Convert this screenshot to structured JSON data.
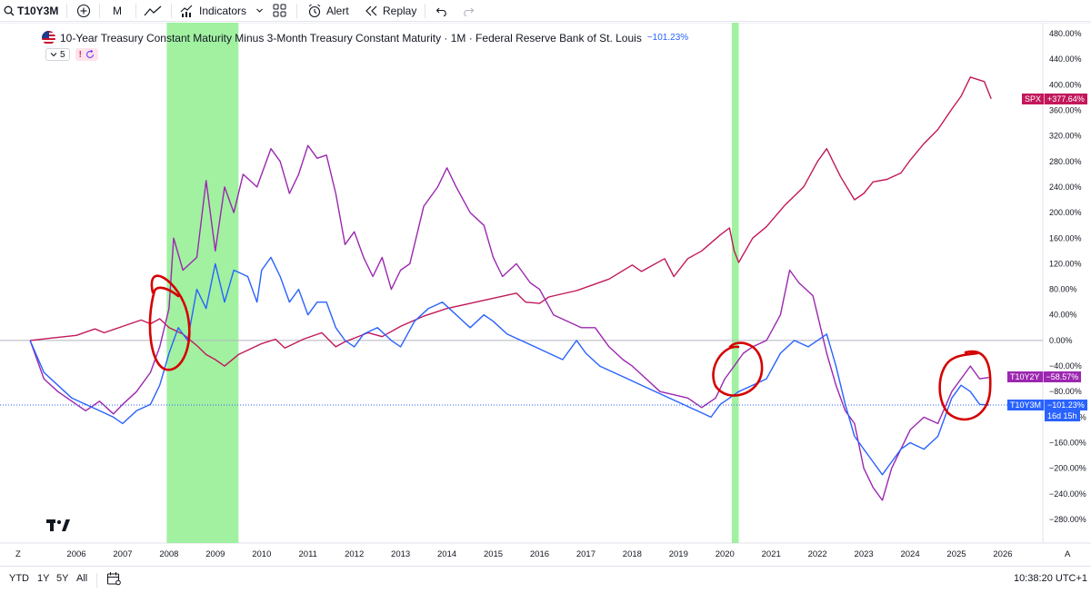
{
  "toolbar": {
    "symbol": "T10Y3M",
    "interval": "M",
    "indicators_label": "Indicators",
    "alert_label": "Alert",
    "replay_label": "Replay"
  },
  "legend": {
    "title": "10-Year Treasury Constant Maturity Minus 3-Month Treasury Constant Maturity · 1M · Federal Reserve Bank of St. Louis",
    "change": "−101.23%",
    "collapse_count": "5",
    "alert_glyph": "!"
  },
  "price_labels": {
    "spx": {
      "name": "SPX",
      "value": "+377.64%"
    },
    "t10y2y": {
      "name": "T10Y2Y",
      "value": "−58.57%"
    },
    "t10y3m": {
      "name": "T10Y3M",
      "value": "−101.23%",
      "countdown": "16d 15h"
    }
  },
  "colors": {
    "spx": "#c2185b",
    "t10y2y": "#9c27b0",
    "t10y3m": "#2962ff",
    "recession": "#90ee90",
    "annotation": "#d50000"
  },
  "bottom": {
    "ranges": [
      "YTD",
      "1Y",
      "5Y",
      "All"
    ],
    "time": "10:38:20 UTC+1",
    "corner_left": "Z",
    "corner_right": "A"
  },
  "chart_data": {
    "type": "line",
    "y_unit": "percent change",
    "ylim": [
      -300,
      490
    ],
    "xlim": [
      2005.1,
      2026.8
    ],
    "y_ticks": [
      "480.00%",
      "440.00%",
      "400.00%",
      "360.00%",
      "320.00%",
      "280.00%",
      "240.00%",
      "200.00%",
      "160.00%",
      "120.00%",
      "80.00%",
      "40.00%",
      "0.00%",
      "−40.00%",
      "−80.00%",
      "−120.00%",
      "−160.00%",
      "−200.00%",
      "−240.00%",
      "−280.00%"
    ],
    "y_tick_values": [
      480,
      440,
      400,
      360,
      320,
      280,
      240,
      200,
      160,
      120,
      80,
      40,
      0,
      -40,
      -80,
      -120,
      -160,
      -200,
      -240,
      -280
    ],
    "x_ticks": [
      "2006",
      "2007",
      "2008",
      "2009",
      "2010",
      "2011",
      "2012",
      "2013",
      "2014",
      "2015",
      "2016",
      "2017",
      "2018",
      "2019",
      "2020",
      "2021",
      "2022",
      "2023",
      "2024",
      "2025",
      "2026"
    ],
    "x_tick_values": [
      2006,
      2007,
      2008,
      2009,
      2010,
      2011,
      2012,
      2013,
      2014,
      2015,
      2016,
      2017,
      2018,
      2019,
      2020,
      2021,
      2022,
      2023,
      2024,
      2025,
      2026
    ],
    "recessions": [
      [
        2007.95,
        2009.5
      ],
      [
        2020.15,
        2020.3
      ]
    ],
    "series": [
      {
        "name": "SPX",
        "key": "spx",
        "points": [
          [
            2005.0,
            0
          ],
          [
            2005.5,
            4
          ],
          [
            2006.0,
            8
          ],
          [
            2006.4,
            18
          ],
          [
            2006.6,
            12
          ],
          [
            2007.0,
            22
          ],
          [
            2007.4,
            32
          ],
          [
            2007.6,
            26
          ],
          [
            2007.8,
            34
          ],
          [
            2008.0,
            20
          ],
          [
            2008.3,
            10
          ],
          [
            2008.6,
            -8
          ],
          [
            2008.8,
            -22
          ],
          [
            2009.0,
            -30
          ],
          [
            2009.2,
            -40
          ],
          [
            2009.5,
            -22
          ],
          [
            2010.0,
            -5
          ],
          [
            2010.3,
            2
          ],
          [
            2010.5,
            -12
          ],
          [
            2010.9,
            2
          ],
          [
            2011.3,
            12
          ],
          [
            2011.6,
            -10
          ],
          [
            2011.8,
            -2
          ],
          [
            2012.3,
            12
          ],
          [
            2012.6,
            6
          ],
          [
            2013.0,
            22
          ],
          [
            2013.5,
            38
          ],
          [
            2014.0,
            50
          ],
          [
            2014.5,
            58
          ],
          [
            2015.0,
            66
          ],
          [
            2015.5,
            74
          ],
          [
            2015.7,
            60
          ],
          [
            2016.0,
            58
          ],
          [
            2016.2,
            68
          ],
          [
            2016.8,
            78
          ],
          [
            2017.5,
            96
          ],
          [
            2018.0,
            118
          ],
          [
            2018.2,
            108
          ],
          [
            2018.7,
            128
          ],
          [
            2018.9,
            100
          ],
          [
            2019.2,
            128
          ],
          [
            2019.5,
            140
          ],
          [
            2019.9,
            165
          ],
          [
            2020.1,
            176
          ],
          [
            2020.2,
            140
          ],
          [
            2020.3,
            122
          ],
          [
            2020.6,
            160
          ],
          [
            2020.9,
            178
          ],
          [
            2021.3,
            212
          ],
          [
            2021.7,
            240
          ],
          [
            2022.0,
            280
          ],
          [
            2022.2,
            300
          ],
          [
            2022.5,
            256
          ],
          [
            2022.8,
            220
          ],
          [
            2023.0,
            230
          ],
          [
            2023.2,
            248
          ],
          [
            2023.5,
            252
          ],
          [
            2023.8,
            262
          ],
          [
            2024.0,
            282
          ],
          [
            2024.3,
            308
          ],
          [
            2024.6,
            330
          ],
          [
            2024.9,
            362
          ],
          [
            2025.1,
            382
          ],
          [
            2025.3,
            412
          ],
          [
            2025.6,
            405
          ],
          [
            2025.75,
            378
          ]
        ]
      },
      {
        "name": "T10Y2Y",
        "key": "t10y2y",
        "points": [
          [
            2005.0,
            0
          ],
          [
            2005.3,
            -60
          ],
          [
            2005.6,
            -80
          ],
          [
            2005.9,
            -95
          ],
          [
            2006.2,
            -110
          ],
          [
            2006.5,
            -95
          ],
          [
            2006.8,
            -115
          ],
          [
            2007.0,
            -100
          ],
          [
            2007.3,
            -80
          ],
          [
            2007.6,
            -50
          ],
          [
            2007.8,
            -10
          ],
          [
            2008.0,
            50
          ],
          [
            2008.1,
            160
          ],
          [
            2008.3,
            110
          ],
          [
            2008.6,
            130
          ],
          [
            2008.8,
            250
          ],
          [
            2009.0,
            140
          ],
          [
            2009.2,
            240
          ],
          [
            2009.4,
            200
          ],
          [
            2009.6,
            260
          ],
          [
            2009.9,
            240
          ],
          [
            2010.2,
            300
          ],
          [
            2010.4,
            280
          ],
          [
            2010.6,
            230
          ],
          [
            2010.8,
            260
          ],
          [
            2011.0,
            305
          ],
          [
            2011.2,
            285
          ],
          [
            2011.4,
            290
          ],
          [
            2011.6,
            230
          ],
          [
            2011.8,
            150
          ],
          [
            2012.0,
            170
          ],
          [
            2012.2,
            130
          ],
          [
            2012.4,
            100
          ],
          [
            2012.6,
            130
          ],
          [
            2012.8,
            80
          ],
          [
            2013.0,
            110
          ],
          [
            2013.2,
            120
          ],
          [
            2013.5,
            210
          ],
          [
            2013.8,
            240
          ],
          [
            2014.0,
            270
          ],
          [
            2014.2,
            240
          ],
          [
            2014.5,
            200
          ],
          [
            2014.8,
            180
          ],
          [
            2015.0,
            130
          ],
          [
            2015.2,
            100
          ],
          [
            2015.5,
            120
          ],
          [
            2015.8,
            90
          ],
          [
            2016.0,
            80
          ],
          [
            2016.3,
            40
          ],
          [
            2016.6,
            30
          ],
          [
            2016.9,
            20
          ],
          [
            2017.2,
            20
          ],
          [
            2017.5,
            -10
          ],
          [
            2017.8,
            -30
          ],
          [
            2018.0,
            -40
          ],
          [
            2018.3,
            -60
          ],
          [
            2018.6,
            -80
          ],
          [
            2018.9,
            -85
          ],
          [
            2019.2,
            -90
          ],
          [
            2019.5,
            -105
          ],
          [
            2019.8,
            -90
          ],
          [
            2020.0,
            -60
          ],
          [
            2020.2,
            -40
          ],
          [
            2020.4,
            -20
          ],
          [
            2020.6,
            -10
          ],
          [
            2020.9,
            0
          ],
          [
            2021.2,
            40
          ],
          [
            2021.4,
            110
          ],
          [
            2021.6,
            90
          ],
          [
            2021.9,
            70
          ],
          [
            2022.0,
            40
          ],
          [
            2022.2,
            -20
          ],
          [
            2022.4,
            -70
          ],
          [
            2022.6,
            -110
          ],
          [
            2022.8,
            -130
          ],
          [
            2023.0,
            -200
          ],
          [
            2023.2,
            -230
          ],
          [
            2023.4,
            -250
          ],
          [
            2023.6,
            -200
          ],
          [
            2023.8,
            -170
          ],
          [
            2024.0,
            -140
          ],
          [
            2024.3,
            -120
          ],
          [
            2024.6,
            -130
          ],
          [
            2024.9,
            -80
          ],
          [
            2025.1,
            -60
          ],
          [
            2025.3,
            -40
          ],
          [
            2025.5,
            -60
          ],
          [
            2025.7,
            -58
          ]
        ]
      },
      {
        "name": "T10Y3M",
        "key": "t10y3m",
        "points": [
          [
            2005.0,
            0
          ],
          [
            2005.3,
            -50
          ],
          [
            2005.6,
            -70
          ],
          [
            2005.9,
            -90
          ],
          [
            2006.2,
            -100
          ],
          [
            2006.5,
            -110
          ],
          [
            2006.8,
            -120
          ],
          [
            2007.0,
            -130
          ],
          [
            2007.3,
            -110
          ],
          [
            2007.6,
            -100
          ],
          [
            2007.8,
            -70
          ],
          [
            2008.0,
            -20
          ],
          [
            2008.2,
            20
          ],
          [
            2008.4,
            0
          ],
          [
            2008.6,
            80
          ],
          [
            2008.8,
            50
          ],
          [
            2009.0,
            120
          ],
          [
            2009.2,
            60
          ],
          [
            2009.4,
            110
          ],
          [
            2009.7,
            100
          ],
          [
            2009.9,
            60
          ],
          [
            2010.0,
            110
          ],
          [
            2010.2,
            130
          ],
          [
            2010.4,
            100
          ],
          [
            2010.6,
            60
          ],
          [
            2010.8,
            80
          ],
          [
            2011.0,
            40
          ],
          [
            2011.2,
            60
          ],
          [
            2011.4,
            60
          ],
          [
            2011.6,
            20
          ],
          [
            2011.8,
            0
          ],
          [
            2012.0,
            -10
          ],
          [
            2012.2,
            10
          ],
          [
            2012.5,
            20
          ],
          [
            2012.8,
            0
          ],
          [
            2013.0,
            -10
          ],
          [
            2013.3,
            30
          ],
          [
            2013.6,
            50
          ],
          [
            2013.9,
            60
          ],
          [
            2014.2,
            40
          ],
          [
            2014.5,
            20
          ],
          [
            2014.8,
            40
          ],
          [
            2015.0,
            30
          ],
          [
            2015.3,
            10
          ],
          [
            2015.6,
            0
          ],
          [
            2015.9,
            -10
          ],
          [
            2016.2,
            -20
          ],
          [
            2016.5,
            -30
          ],
          [
            2016.8,
            0
          ],
          [
            2017.0,
            -20
          ],
          [
            2017.3,
            -40
          ],
          [
            2017.6,
            -50
          ],
          [
            2017.9,
            -60
          ],
          [
            2018.2,
            -70
          ],
          [
            2018.5,
            -80
          ],
          [
            2018.8,
            -90
          ],
          [
            2019.1,
            -100
          ],
          [
            2019.4,
            -110
          ],
          [
            2019.7,
            -120
          ],
          [
            2019.9,
            -100
          ],
          [
            2020.1,
            -90
          ],
          [
            2020.3,
            -80
          ],
          [
            2020.6,
            -70
          ],
          [
            2020.9,
            -60
          ],
          [
            2021.2,
            -20
          ],
          [
            2021.5,
            0
          ],
          [
            2021.8,
            -10
          ],
          [
            2022.0,
            0
          ],
          [
            2022.2,
            10
          ],
          [
            2022.4,
            -40
          ],
          [
            2022.6,
            -100
          ],
          [
            2022.8,
            -150
          ],
          [
            2023.0,
            -170
          ],
          [
            2023.2,
            -190
          ],
          [
            2023.4,
            -210
          ],
          [
            2023.6,
            -190
          ],
          [
            2023.8,
            -170
          ],
          [
            2024.0,
            -160
          ],
          [
            2024.3,
            -170
          ],
          [
            2024.6,
            -150
          ],
          [
            2024.9,
            -90
          ],
          [
            2025.1,
            -70
          ],
          [
            2025.3,
            -80
          ],
          [
            2025.5,
            -100
          ],
          [
            2025.7,
            -101
          ]
        ]
      }
    ]
  }
}
